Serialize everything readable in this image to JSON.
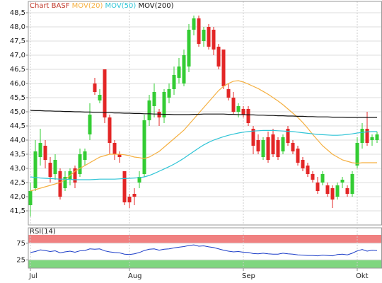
{
  "chart_data": [
    {
      "type": "candlestick",
      "title": "Chart BASF",
      "categories": [
        "Jul",
        null,
        null,
        null,
        null,
        null,
        null,
        null,
        null,
        null,
        null,
        null,
        null,
        null,
        null,
        null,
        null,
        null,
        null,
        null,
        "Aug",
        null,
        null,
        null,
        null,
        null,
        null,
        null,
        null,
        null,
        null,
        null,
        null,
        null,
        null,
        null,
        null,
        null,
        null,
        null,
        null,
        null,
        null,
        "Sep",
        null,
        null,
        null,
        null,
        null,
        null,
        null,
        null,
        null,
        null,
        null,
        null,
        null,
        null,
        null,
        null,
        null,
        null,
        null,
        null,
        null,
        null,
        "Okt",
        null,
        null,
        null,
        null
      ],
      "open": [
        41.7,
        42.3,
        43.4,
        43.8,
        43.2,
        42.8,
        42.9,
        42.3,
        42.6,
        43.0,
        42.8,
        43.3,
        44.2,
        46.0,
        45.4,
        46.5,
        44.8,
        43.9,
        43.5,
        42.9,
        42.0,
        42.1,
        42.5,
        42.8,
        44.7,
        45.2,
        45.0,
        44.8,
        45.5,
        45.8,
        46.2,
        46.0,
        46.6,
        47.9,
        48.3,
        47.5,
        48.0,
        47.9,
        47.3,
        47.2,
        45.8,
        45.5,
        45.0,
        45.1,
        45.1,
        44.4,
        44.0,
        43.4,
        44.1,
        44.2,
        44.0,
        43.6,
        44.4,
        43.9,
        43.7,
        43.3,
        43.1,
        42.8,
        42.5,
        42.5,
        42.4,
        42.3,
        42.0,
        42.5,
        42.3,
        42.1,
        43.1,
        43.9,
        44.4,
        44.0,
        44.0
      ],
      "high": [
        42.5,
        44.0,
        44.4,
        44.0,
        43.4,
        43.5,
        43.0,
        42.9,
        43.0,
        43.1,
        43.7,
        43.7,
        45.3,
        46.2,
        45.8,
        46.5,
        44.9,
        44.0,
        43.6,
        42.9,
        42.1,
        42.3,
        42.9,
        44.9,
        45.6,
        46.0,
        45.1,
        45.8,
        46.0,
        46.6,
        46.9,
        47.2,
        48.1,
        48.4,
        48.4,
        48.0,
        48.1,
        48.0,
        47.4,
        47.2,
        46.0,
        45.7,
        45.3,
        45.2,
        45.2,
        44.5,
        44.2,
        44.1,
        44.3,
        44.4,
        44.1,
        44.2,
        44.5,
        44.0,
        43.8,
        43.4,
        43.2,
        42.9,
        42.7,
        42.9,
        42.5,
        42.4,
        42.5,
        42.7,
        42.4,
        42.9,
        44.1,
        44.6,
        45.0,
        44.2,
        44.3
      ],
      "low": [
        41.3,
        42.2,
        43.1,
        43.0,
        42.5,
        42.6,
        41.9,
        42.2,
        42.4,
        42.3,
        42.7,
        43.1,
        44.0,
        45.6,
        45.3,
        44.6,
        43.5,
        43.3,
        43.2,
        41.7,
        41.6,
        41.7,
        42.3,
        42.7,
        44.5,
        44.8,
        44.5,
        44.6,
        45.3,
        45.6,
        46.0,
        45.9,
        46.4,
        47.7,
        47.3,
        47.3,
        47.2,
        47.0,
        46.5,
        45.8,
        45.4,
        44.9,
        44.8,
        44.8,
        44.5,
        43.5,
        43.5,
        43.3,
        43.2,
        43.4,
        43.3,
        43.5,
        43.8,
        43.5,
        43.1,
        42.9,
        42.7,
        42.5,
        42.1,
        42.4,
        42.0,
        41.6,
        41.9,
        42.3,
        42.0,
        42.0,
        43.0,
        43.7,
        43.8,
        43.8,
        43.9
      ],
      "close": [
        42.2,
        43.6,
        43.9,
        43.3,
        42.7,
        43.3,
        42.0,
        42.7,
        42.9,
        42.5,
        43.5,
        43.6,
        44.9,
        45.7,
        45.6,
        44.8,
        43.9,
        43.5,
        43.4,
        41.8,
        41.8,
        42.0,
        42.7,
        44.7,
        45.4,
        45.7,
        44.8,
        45.7,
        45.8,
        46.3,
        46.6,
        47.0,
        47.9,
        48.3,
        47.4,
        47.9,
        47.3,
        47.2,
        46.6,
        45.9,
        45.5,
        45.0,
        45.2,
        44.9,
        44.6,
        43.8,
        43.6,
        44.0,
        43.3,
        43.5,
        43.4,
        44.1,
        43.9,
        43.6,
        43.2,
        43.0,
        42.8,
        42.6,
        42.2,
        42.8,
        42.1,
        41.9,
        42.4,
        42.6,
        42.1,
        42.8,
        43.9,
        44.4,
        43.9,
        44.1,
        44.2
      ],
      "up_color": "#33cc33",
      "down_color": "#e32626",
      "series": [
        {
          "name": "MOV(20)",
          "color": "#f5b041",
          "values": [
            42.2,
            42.25,
            42.3,
            42.35,
            42.4,
            42.45,
            42.5,
            42.6,
            42.75,
            42.9,
            43.0,
            43.1,
            43.2,
            43.3,
            43.4,
            43.45,
            43.5,
            43.5,
            43.5,
            43.48,
            43.45,
            43.4,
            43.38,
            43.35,
            43.4,
            43.5,
            43.6,
            43.75,
            43.9,
            44.05,
            44.2,
            44.35,
            44.55,
            44.75,
            44.95,
            45.15,
            45.35,
            45.55,
            45.75,
            45.9,
            46.0,
            46.08,
            46.1,
            46.05,
            45.98,
            45.9,
            45.82,
            45.72,
            45.62,
            45.5,
            45.38,
            45.25,
            45.1,
            44.95,
            44.8,
            44.62,
            44.42,
            44.2,
            44.0,
            43.8,
            43.65,
            43.5,
            43.4,
            43.3,
            43.25,
            43.2,
            43.18,
            43.2,
            43.2,
            43.2,
            43.2
          ]
        },
        {
          "name": "MOV(50)",
          "color": "#2ec4d6",
          "values": [
            42.7,
            42.68,
            42.66,
            42.65,
            42.64,
            42.63,
            42.62,
            42.62,
            42.61,
            42.6,
            42.6,
            42.6,
            42.6,
            42.61,
            42.62,
            42.62,
            42.62,
            42.62,
            42.63,
            42.64,
            42.65,
            42.66,
            42.67,
            42.7,
            42.75,
            42.82,
            42.9,
            42.98,
            43.06,
            43.15,
            43.25,
            43.36,
            43.48,
            43.6,
            43.72,
            43.83,
            43.92,
            44.0,
            44.06,
            44.12,
            44.17,
            44.21,
            44.25,
            44.28,
            44.3,
            44.32,
            44.33,
            44.34,
            44.34,
            44.34,
            44.33,
            44.32,
            44.31,
            44.3,
            44.28,
            44.26,
            44.24,
            44.22,
            44.2,
            44.19,
            44.18,
            44.17,
            44.17,
            44.18,
            44.2,
            44.22,
            44.25,
            44.27,
            44.29,
            44.3,
            44.3
          ]
        },
        {
          "name": "MOV(200)",
          "color": "#111111",
          "values": [
            45.05,
            45.04,
            45.04,
            45.03,
            45.03,
            45.02,
            45.02,
            45.01,
            45.01,
            45.0,
            45.0,
            44.99,
            44.99,
            44.98,
            44.98,
            44.97,
            44.97,
            44.96,
            44.96,
            44.95,
            44.95,
            44.94,
            44.94,
            44.93,
            44.93,
            44.92,
            44.92,
            44.91,
            44.91,
            44.9,
            44.9,
            44.9,
            44.9,
            44.91,
            44.91,
            44.92,
            44.92,
            44.92,
            44.92,
            44.92,
            44.91,
            44.91,
            44.9,
            44.9,
            44.89,
            44.89,
            44.88,
            44.88,
            44.87,
            44.87,
            44.86,
            44.86,
            44.85,
            44.85,
            44.84,
            44.84,
            44.83,
            44.83,
            44.82,
            44.82,
            44.82,
            44.81,
            44.81,
            44.81,
            44.8,
            44.8,
            44.8,
            44.8,
            44.8,
            44.8,
            44.8
          ]
        }
      ],
      "ylim": [
        41.0,
        48.9
      ],
      "yticks": [
        {
          "value": 41.5,
          "label": "41,5"
        },
        {
          "value": 42.0,
          "label": "42,0"
        },
        {
          "value": 42.5,
          "label": "42,5"
        },
        {
          "value": 43.0,
          "label": "43,0"
        },
        {
          "value": 43.5,
          "label": "43,5"
        },
        {
          "value": 44.0,
          "label": "44,0"
        },
        {
          "value": 44.5,
          "label": "44,5"
        },
        {
          "value": 45.0,
          "label": "45,0"
        },
        {
          "value": 45.5,
          "label": "45,5"
        },
        {
          "value": 46.0,
          "label": "46,0"
        },
        {
          "value": 46.5,
          "label": "46,5"
        },
        {
          "value": 47.0,
          "label": "47,0"
        },
        {
          "value": 47.5,
          "label": "47,5"
        },
        {
          "value": 48.0,
          "label": "48,0"
        },
        {
          "value": 48.5,
          "label": "48,5"
        }
      ],
      "grid": true
    },
    {
      "type": "line",
      "title": "RSI(14)",
      "series": [
        {
          "color": "#1a3cc8",
          "values": [
            47,
            50,
            55,
            53,
            50,
            52,
            46,
            49,
            51,
            48,
            52,
            53,
            58,
            57,
            58,
            52,
            49,
            47,
            46,
            42,
            41,
            43,
            47,
            53,
            57,
            58,
            54,
            57,
            58,
            61,
            63,
            65,
            68,
            70,
            66,
            67,
            64,
            62,
            58,
            54,
            51,
            49,
            50,
            48,
            47,
            44,
            43,
            45,
            43,
            42,
            42,
            45,
            43,
            42,
            40,
            39,
            38,
            38,
            37,
            39,
            38,
            37,
            41,
            42,
            40,
            45,
            52,
            56,
            51,
            54,
            53
          ]
        }
      ],
      "ylim": [
        0,
        100
      ],
      "yticks": [
        25,
        75
      ],
      "high_band_color": "#f08080",
      "low_band_color": "#7fd67f"
    }
  ]
}
